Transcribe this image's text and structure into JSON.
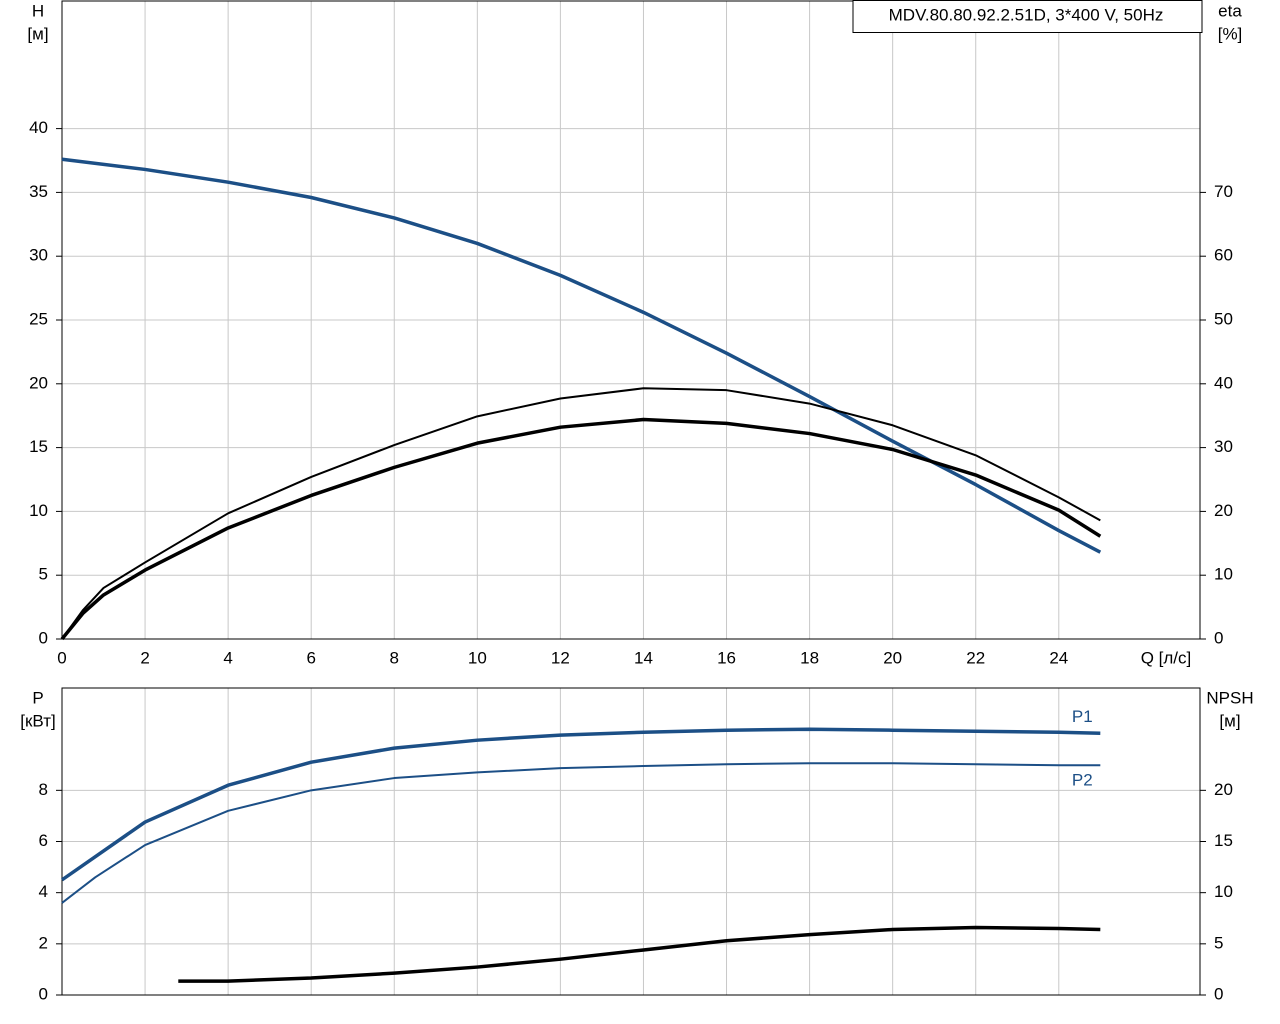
{
  "chart_data": [
    {
      "type": "line",
      "title": "MDV.80.80.92.2.51D, 3*400 V, 50Hz",
      "ylabel": [
        "H",
        "[м]"
      ],
      "y2label": [
        "eta",
        "[%]"
      ],
      "xlabel": "Q [л/с]",
      "xlim": [
        0,
        27.4
      ],
      "xticks": [
        0,
        2,
        4,
        6,
        8,
        10,
        12,
        14,
        16,
        18,
        20,
        22,
        24
      ],
      "ylim": [
        0,
        50
      ],
      "yticks": [
        0,
        5,
        10,
        15,
        20,
        25,
        30,
        35,
        40
      ],
      "y2lim": [
        0,
        100
      ],
      "y2ticks": [
        0,
        10,
        20,
        30,
        40,
        50,
        60,
        70
      ],
      "grid": true,
      "series": [
        {
          "color": "#1c4f86",
          "x": [
            0,
            2,
            4,
            6,
            8,
            10,
            12,
            14,
            16,
            18,
            20,
            22,
            24,
            25
          ],
          "values": [
            37.6,
            36.8,
            35.8,
            34.6,
            33.0,
            31.0,
            28.5,
            25.6,
            22.4,
            19.0,
            15.5,
            12.1,
            8.5,
            6.8
          ]
        },
        {
          "color": "#000000",
          "axis": "y2",
          "x": [
            0,
            0.5,
            1,
            2,
            4,
            6,
            8,
            10,
            12,
            14,
            16,
            18,
            20,
            22,
            24,
            25
          ],
          "values": [
            0,
            4.5,
            8.0,
            12.0,
            19.7,
            25.4,
            30.4,
            34.9,
            37.7,
            39.3,
            39.0,
            36.9,
            33.5,
            28.8,
            22.2,
            18.6
          ]
        },
        {
          "color": "#000000",
          "axis": "y2",
          "x": [
            0,
            0.5,
            1,
            2,
            4,
            6,
            8,
            10,
            12,
            14,
            16,
            18,
            20,
            22,
            24,
            25
          ],
          "values": [
            0,
            4.0,
            6.9,
            10.8,
            17.4,
            22.5,
            26.9,
            30.7,
            33.2,
            34.4,
            33.8,
            32.2,
            29.7,
            25.7,
            20.2,
            16.1
          ]
        }
      ]
    },
    {
      "type": "line",
      "ylabel": [
        "P",
        "[кВт]"
      ],
      "y2label": [
        "NPSH",
        "[м]"
      ],
      "xlim": [
        0,
        27.4
      ],
      "ylim": [
        0,
        12
      ],
      "yticks": [
        0,
        2,
        4,
        6,
        8
      ],
      "y2lim": [
        0,
        30
      ],
      "y2ticks": [
        0,
        5,
        10,
        15,
        20
      ],
      "grid": true,
      "series": [
        {
          "name": "P1",
          "color": "#1c4f86",
          "x": [
            0,
            2,
            4,
            6,
            8,
            10,
            12,
            14,
            16,
            18,
            20,
            22,
            24,
            25
          ],
          "values": [
            4.5,
            6.76,
            8.2,
            9.1,
            9.65,
            9.96,
            10.16,
            10.27,
            10.35,
            10.39,
            10.35,
            10.31,
            10.27,
            10.23
          ]
        },
        {
          "name": "P2",
          "color": "#1c4f86",
          "x": [
            0,
            0.8,
            2,
            4,
            6,
            8,
            10,
            12,
            14,
            16,
            18,
            20,
            22,
            24,
            25
          ],
          "values": [
            3.6,
            4.6,
            5.86,
            7.2,
            8.0,
            8.48,
            8.7,
            8.87,
            8.95,
            9.02,
            9.06,
            9.06,
            9.02,
            8.98,
            8.98
          ]
        },
        {
          "color": "#000000",
          "axis": "y2",
          "x": [
            2.8,
            4,
            6,
            8,
            10,
            12,
            14,
            16,
            18,
            20,
            22,
            24,
            25
          ],
          "values": [
            1.36,
            1.36,
            1.66,
            2.14,
            2.73,
            3.5,
            4.4,
            5.3,
            5.9,
            6.4,
            6.6,
            6.5,
            6.4
          ]
        }
      ]
    }
  ]
}
